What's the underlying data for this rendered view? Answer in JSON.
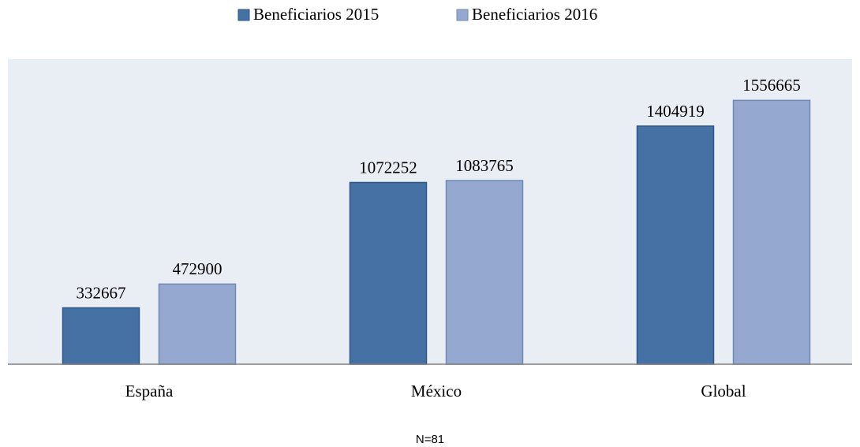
{
  "chart_data": {
    "type": "bar",
    "categories": [
      "España",
      "México",
      "Global"
    ],
    "series": [
      {
        "name": "Beneficiarios 2015",
        "color": "#4571a5",
        "values": [
          332667,
          1072252,
          1404919
        ]
      },
      {
        "name": "Beneficiarios 2016",
        "color": "#95a9d0",
        "values": [
          472900,
          1083765,
          1556665
        ]
      }
    ],
    "ylim": [
      0,
      1800000
    ],
    "legend": "top",
    "note": "N=81"
  }
}
